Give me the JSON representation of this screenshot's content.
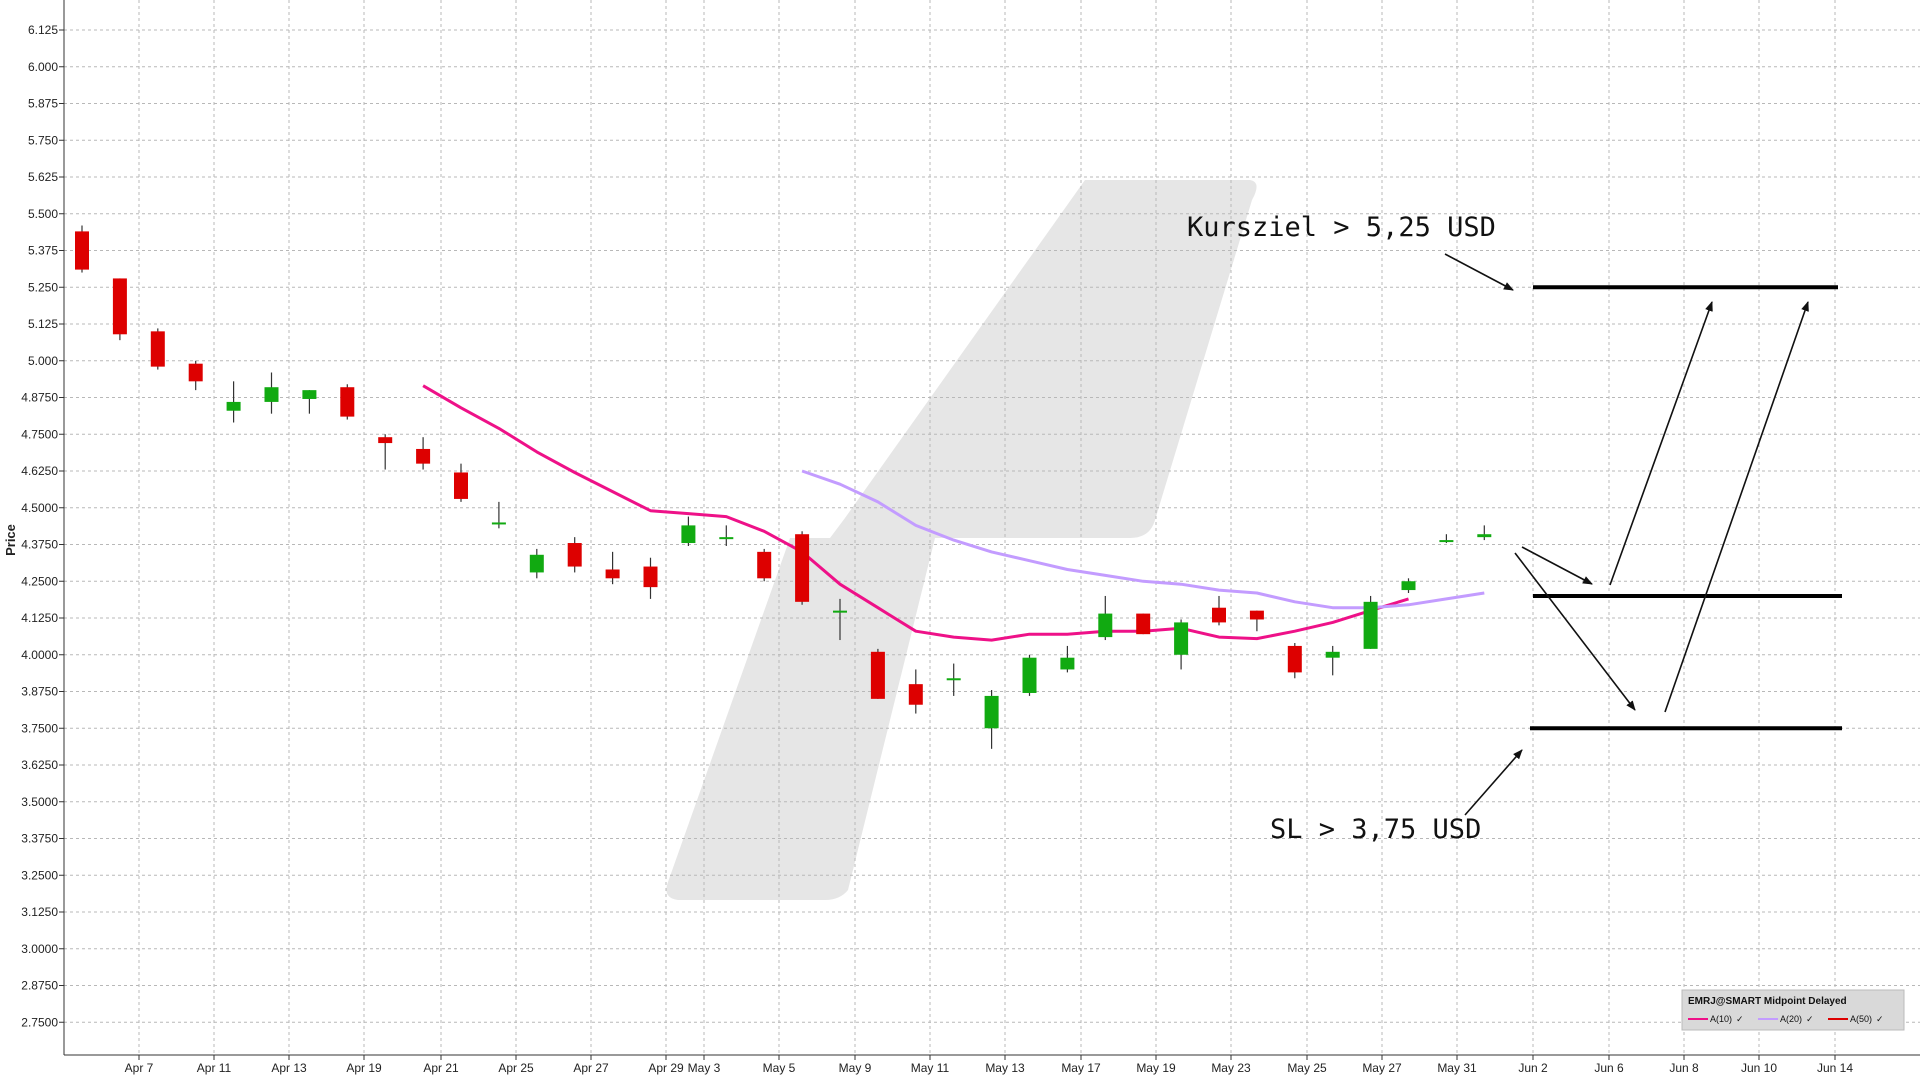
{
  "chart_data": {
    "type": "candlestick",
    "ylabel": "Price",
    "ylim": [
      2.625,
      6.1875
    ],
    "y_ticks": [
      "6.125",
      "6.000",
      "5.875",
      "5.750",
      "5.625",
      "5.500",
      "5.375",
      "5.250",
      "5.125",
      "5.000",
      "4.8750",
      "4.7500",
      "4.6250",
      "4.5000",
      "4.3750",
      "4.2500",
      "4.1250",
      "4.0000",
      "3.8750",
      "3.7500",
      "3.6250",
      "3.5000",
      "3.3750",
      "3.2500",
      "3.1250",
      "3.0000",
      "2.8750",
      "2.7500"
    ],
    "x_ticks": [
      "Apr 7",
      "Apr 11",
      "Apr 13",
      "Apr 19",
      "Apr 21",
      "Apr 25",
      "Apr 27",
      "Apr 29",
      "May 3",
      "May 5",
      "May 9",
      "May 11",
      "May 13",
      "May 17",
      "May 19",
      "May 23",
      "May 25",
      "May 27",
      "May 31",
      "Jun 2",
      "Jun 6",
      "Jun 8",
      "Jun 10",
      "Jun 14"
    ],
    "candles": [
      {
        "o": 5.44,
        "h": 5.46,
        "l": 5.3,
        "c": 5.31
      },
      {
        "o": 5.28,
        "h": 5.28,
        "l": 5.07,
        "c": 5.09
      },
      {
        "o": 5.1,
        "h": 5.11,
        "l": 4.97,
        "c": 4.98
      },
      {
        "o": 4.99,
        "h": 5.0,
        "l": 4.9,
        "c": 4.93
      },
      {
        "o": 4.83,
        "h": 4.93,
        "l": 4.79,
        "c": 4.86
      },
      {
        "o": 4.86,
        "h": 4.96,
        "l": 4.82,
        "c": 4.91
      },
      {
        "o": 4.87,
        "h": 4.9,
        "l": 4.82,
        "c": 4.9
      },
      {
        "o": 4.91,
        "h": 4.92,
        "l": 4.8,
        "c": 4.81
      },
      {
        "o": 4.74,
        "h": 4.75,
        "l": 4.63,
        "c": 4.72
      },
      {
        "o": 4.7,
        "h": 4.74,
        "l": 4.63,
        "c": 4.65
      },
      {
        "o": 4.62,
        "h": 4.65,
        "l": 4.52,
        "c": 4.53
      },
      {
        "o": 4.45,
        "h": 4.52,
        "l": 4.43,
        "c": 4.45
      },
      {
        "o": 4.28,
        "h": 4.36,
        "l": 4.26,
        "c": 4.34
      },
      {
        "o": 4.38,
        "h": 4.4,
        "l": 4.28,
        "c": 4.3
      },
      {
        "o": 4.29,
        "h": 4.35,
        "l": 4.24,
        "c": 4.26
      },
      {
        "o": 4.3,
        "h": 4.33,
        "l": 4.19,
        "c": 4.23
      },
      {
        "o": 4.38,
        "h": 4.47,
        "l": 4.37,
        "c": 4.44
      },
      {
        "o": 4.4,
        "h": 4.44,
        "l": 4.37,
        "c": 4.4
      },
      {
        "o": 4.35,
        "h": 4.36,
        "l": 4.25,
        "c": 4.26
      },
      {
        "o": 4.41,
        "h": 4.42,
        "l": 4.17,
        "c": 4.18
      },
      {
        "o": 4.15,
        "h": 4.19,
        "l": 4.05,
        "c": 4.15
      },
      {
        "o": 4.01,
        "h": 4.02,
        "l": 3.85,
        "c": 3.85
      },
      {
        "o": 3.9,
        "h": 3.95,
        "l": 3.8,
        "c": 3.83
      },
      {
        "o": 3.92,
        "h": 3.97,
        "l": 3.86,
        "c": 3.92
      },
      {
        "o": 3.75,
        "h": 3.88,
        "l": 3.68,
        "c": 3.86
      },
      {
        "o": 3.87,
        "h": 4.0,
        "l": 3.86,
        "c": 3.99
      },
      {
        "o": 3.95,
        "h": 4.03,
        "l": 3.94,
        "c": 3.99
      },
      {
        "o": 4.06,
        "h": 4.2,
        "l": 4.05,
        "c": 4.14
      },
      {
        "o": 4.14,
        "h": 4.14,
        "l": 4.07,
        "c": 4.07
      },
      {
        "o": 4.0,
        "h": 4.12,
        "l": 3.95,
        "c": 4.11
      },
      {
        "o": 4.16,
        "h": 4.2,
        "l": 4.1,
        "c": 4.11
      },
      {
        "o": 4.15,
        "h": 4.15,
        "l": 4.08,
        "c": 4.12
      },
      {
        "o": 4.03,
        "h": 4.04,
        "l": 3.92,
        "c": 3.94
      },
      {
        "o": 3.99,
        "h": 4.03,
        "l": 3.93,
        "c": 4.01
      },
      {
        "o": 4.02,
        "h": 4.2,
        "l": 4.02,
        "c": 4.18
      },
      {
        "o": 4.22,
        "h": 4.26,
        "l": 4.21,
        "c": 4.25
      },
      {
        "o": 4.39,
        "h": 4.41,
        "l": 4.38,
        "c": 4.39
      },
      {
        "o": 4.4,
        "h": 4.44,
        "l": 4.39,
        "c": 4.41
      }
    ],
    "series": [
      {
        "name": "A(10)",
        "color": "#ee1188",
        "start": 9,
        "values": [
          4.915,
          4.84,
          4.77,
          4.69,
          4.62,
          4.555,
          4.49,
          4.48,
          4.47,
          4.42,
          4.35,
          4.24,
          4.16,
          4.08,
          4.06,
          4.05,
          4.07,
          4.07,
          4.08,
          4.08,
          4.09,
          4.06,
          4.055,
          4.08,
          4.11,
          4.15,
          4.19
        ]
      },
      {
        "name": "A(20)",
        "color": "#c39cff",
        "start": 19,
        "values": [
          4.625,
          4.58,
          4.52,
          4.44,
          4.39,
          4.35,
          4.32,
          4.29,
          4.27,
          4.25,
          4.24,
          4.22,
          4.21,
          4.18,
          4.16,
          4.16,
          4.17,
          4.19,
          4.21
        ]
      }
    ],
    "levels": [
      {
        "value": 5.25,
        "color": "#000000"
      },
      {
        "value": 4.2,
        "color": "#000000"
      },
      {
        "value": 3.75,
        "color": "#000000"
      }
    ],
    "annotations": [
      {
        "text": "Kursziel > 5,25 USD",
        "value": 5.25
      },
      {
        "text": "SL > 3,75 USD",
        "value": 3.75
      }
    ],
    "legend": {
      "title": "EMRJ@SMART Midpoint Delayed",
      "placement": "bottom-right",
      "items": [
        {
          "label": "A(10)",
          "color": "#ee1188"
        },
        {
          "label": "A(20)",
          "color": "#c39cff"
        },
        {
          "label": "A(50)",
          "color": "#dd0000"
        }
      ]
    },
    "colors": {
      "up": "#11aa11",
      "down": "#dd0000",
      "grid": "#b8b8b8"
    }
  }
}
